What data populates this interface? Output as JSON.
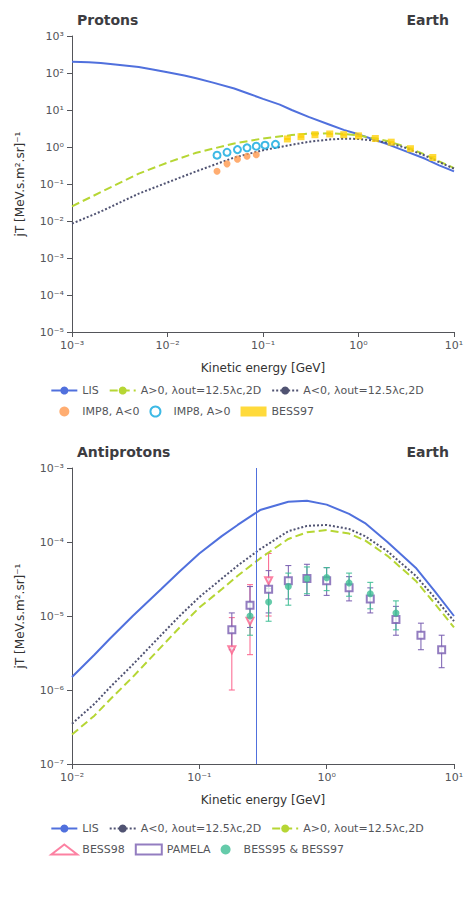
{
  "chart_data": [
    {
      "type": "line",
      "title": "Protons",
      "annotations": [
        "Earth"
      ],
      "xlabel": "Kinetic energy [GeV]",
      "ylabel": "jT [MeV.s.m².sr]⁻¹",
      "log": true,
      "grid": false,
      "legend": "bottom",
      "xlim": [
        0.001,
        10
      ],
      "ylim": [
        1e-05,
        1000
      ],
      "xticks": [
        {
          "value": 0.001,
          "label": "10⁻³"
        },
        {
          "value": 0.01,
          "label": "10⁻²"
        },
        {
          "value": 0.1,
          "label": "10⁻¹"
        },
        {
          "value": 1,
          "label": "10⁰"
        },
        {
          "value": 10,
          "label": "10¹"
        }
      ],
      "yticks": [
        {
          "value": 1e-05,
          "label": "10⁻⁵"
        },
        {
          "value": 0.0001,
          "label": "10⁻⁴"
        },
        {
          "value": 0.001,
          "label": "10⁻³"
        },
        {
          "value": 0.01,
          "label": "10⁻²"
        },
        {
          "value": 0.1,
          "label": "10⁻¹"
        },
        {
          "value": 1,
          "label": "10⁰"
        },
        {
          "value": 10,
          "label": "10¹"
        },
        {
          "value": 100,
          "label": "10²"
        },
        {
          "value": 1000,
          "label": "10³"
        }
      ],
      "series": [
        {
          "name": "LIS",
          "type": "line",
          "line_style": "solid",
          "x": [
            0.001,
            0.0015,
            0.002,
            0.003,
            0.005,
            0.007,
            0.01,
            0.015,
            0.02,
            0.03,
            0.05,
            0.07,
            0.1,
            0.15,
            0.2,
            0.3,
            0.5,
            0.7,
            1.0,
            1.5,
            2.0,
            3.0,
            5.0,
            7.0,
            10.0
          ],
          "values": [
            200,
            195,
            185,
            168,
            145,
            125,
            105,
            86,
            72,
            55,
            38,
            28,
            20,
            14,
            10,
            6.5,
            4.0,
            2.9,
            2.2,
            1.55,
            1.2,
            0.8,
            0.48,
            0.32,
            0.22
          ]
        },
        {
          "name": "A>0, λout=12.5λc,2D",
          "type": "line",
          "line_style": "dashed",
          "x": [
            0.001,
            0.002,
            0.005,
            0.01,
            0.02,
            0.05,
            0.1,
            0.2,
            0.3,
            0.5,
            0.7,
            1.0,
            1.5,
            2.0,
            3.0,
            5.0,
            7.0,
            10.0
          ],
          "values": [
            0.025,
            0.06,
            0.19,
            0.38,
            0.7,
            1.25,
            1.7,
            2.1,
            2.3,
            2.35,
            2.25,
            2.05,
            1.7,
            1.45,
            1.05,
            0.62,
            0.41,
            0.27
          ]
        },
        {
          "name": "A<0, λout=12.5λc,2D",
          "type": "line",
          "line_style": "dotted",
          "x": [
            0.001,
            0.002,
            0.005,
            0.01,
            0.02,
            0.05,
            0.1,
            0.2,
            0.3,
            0.5,
            0.7,
            1.0,
            1.5,
            2.0,
            3.0,
            5.0,
            7.0,
            10.0
          ],
          "values": [
            0.0085,
            0.018,
            0.055,
            0.11,
            0.22,
            0.52,
            0.82,
            1.15,
            1.38,
            1.6,
            1.68,
            1.65,
            1.48,
            1.3,
            0.98,
            0.58,
            0.39,
            0.26
          ]
        },
        {
          "name": "IMP8, A<0",
          "type": "scatter",
          "marker": "circle",
          "x": [
            0.033,
            0.042,
            0.054,
            0.068,
            0.085
          ],
          "values": [
            0.22,
            0.35,
            0.47,
            0.56,
            0.62
          ]
        },
        {
          "name": "IMP8, A>0",
          "type": "scatter",
          "marker": "circle-open",
          "x": [
            0.033,
            0.042,
            0.054,
            0.068,
            0.085,
            0.105,
            0.135
          ],
          "values": [
            0.6,
            0.72,
            0.85,
            0.95,
            1.05,
            1.12,
            1.18
          ]
        },
        {
          "name": "BESS97",
          "type": "scatter",
          "marker": "square",
          "x": [
            0.18,
            0.25,
            0.35,
            0.5,
            0.7,
            1.0,
            1.5,
            2.2,
            3.5,
            6.0
          ],
          "values": [
            1.65,
            1.9,
            2.15,
            2.25,
            2.15,
            2.0,
            1.7,
            1.35,
            0.9,
            0.52
          ],
          "yerr": [
            0.05,
            0.06,
            0.06,
            0.06,
            0.06,
            0.06,
            0.05,
            0.04,
            0.03,
            0.025
          ]
        }
      ]
    },
    {
      "type": "line",
      "title": "Antiprotons",
      "annotations": [
        "Earth"
      ],
      "xlabel": "Kinetic energy [GeV]",
      "ylabel": "jT [MeV.s.m².sr]⁻¹",
      "log": true,
      "grid": false,
      "legend": "bottom",
      "xlim": [
        0.01,
        10
      ],
      "ylim": [
        1e-07,
        0.001
      ],
      "xticks": [
        {
          "value": 0.01,
          "label": "10⁻²"
        },
        {
          "value": 0.1,
          "label": "10⁻¹"
        },
        {
          "value": 1,
          "label": "10⁰"
        },
        {
          "value": 10,
          "label": "10¹"
        }
      ],
      "yticks": [
        {
          "value": 1e-07,
          "label": "10⁻⁷"
        },
        {
          "value": 1e-06,
          "label": "10⁻⁶"
        },
        {
          "value": 1e-05,
          "label": "10⁻⁵"
        },
        {
          "value": 0.0001,
          "label": "10⁻⁴"
        },
        {
          "value": 0.001,
          "label": "10⁻³"
        }
      ],
      "vlines": [
        0.28
      ],
      "series": [
        {
          "name": "LIS",
          "type": "line",
          "line_style": "solid",
          "x": [
            0.01,
            0.015,
            0.02,
            0.03,
            0.05,
            0.07,
            0.1,
            0.15,
            0.2,
            0.3,
            0.5,
            0.7,
            1.0,
            1.5,
            2.0,
            3.0,
            5.0,
            7.0,
            10.0
          ],
          "values": [
            1.5e-06,
            3e-06,
            5e-06,
            1e-05,
            2.3e-05,
            4e-05,
            7e-05,
            0.00012,
            0.00017,
            0.00027,
            0.00035,
            0.00036,
            0.00032,
            0.00024,
            0.00018,
            0.0001,
            4.5e-05,
            2.2e-05,
            1e-05
          ]
        },
        {
          "name": "A<0, λout=12.5λc,2D",
          "type": "line",
          "line_style": "dotted",
          "x": [
            0.01,
            0.015,
            0.02,
            0.03,
            0.05,
            0.07,
            0.1,
            0.15,
            0.2,
            0.3,
            0.5,
            0.7,
            1.0,
            1.5,
            2.0,
            3.0,
            5.0,
            7.0,
            10.0
          ],
          "values": [
            3.5e-07,
            6.5e-07,
            1.1e-06,
            2.2e-06,
            5.5e-06,
            1e-05,
            1.8e-05,
            3.2e-05,
            4.8e-05,
            8e-05,
            0.00014,
            0.000165,
            0.00017,
            0.00015,
            0.00012,
            7.5e-05,
            3.5e-05,
            1.8e-05,
            8.5e-06
          ]
        },
        {
          "name": "A>0, λout=12.5λc,2D",
          "type": "line",
          "line_style": "dashed",
          "x": [
            0.01,
            0.015,
            0.02,
            0.03,
            0.05,
            0.07,
            0.1,
            0.15,
            0.2,
            0.3,
            0.5,
            0.7,
            1.0,
            1.5,
            2.0,
            3.0,
            5.0,
            7.0,
            10.0
          ],
          "values": [
            2.5e-07,
            4.5e-07,
            7.5e-07,
            1.5e-06,
            3.8e-06,
            7e-06,
            1.3e-05,
            2.3e-05,
            3.5e-05,
            6e-05,
            0.00011,
            0.000135,
            0.000145,
            0.00013,
            0.000105,
            6.5e-05,
            3e-05,
            1.5e-05,
            7e-06
          ]
        },
        {
          "name": "BESS98",
          "type": "scatter",
          "marker": "triangle-down-open",
          "x": [
            0.18,
            0.25,
            0.35
          ],
          "values": [
            3.5e-06,
            8.5e-06,
            3e-05
          ],
          "yerr_low": [
            2.5e-06,
            5.5e-06,
            2e-05
          ],
          "yerr_high": [
            6e-06,
            1.8e-05,
            4e-05
          ]
        },
        {
          "name": "PAMELA",
          "type": "scatter",
          "marker": "square-open",
          "x": [
            0.18,
            0.25,
            0.35,
            0.5,
            0.7,
            1.0,
            1.5,
            2.2,
            3.5,
            5.5,
            8.0
          ],
          "values": [
            6.5e-06,
            1.4e-05,
            2.3e-05,
            3e-05,
            3.2e-05,
            3e-05,
            2.4e-05,
            1.7e-05,
            9e-06,
            5.5e-06,
            3.5e-06
          ],
          "yerr_low": [
            3e-06,
            7e-06,
            1.2e-05,
            1.3e-05,
            1.3e-05,
            1.1e-05,
            8e-06,
            6e-06,
            3.5e-06,
            2e-06,
            1.5e-06
          ],
          "yerr_high": [
            4.5e-06,
            1.1e-05,
            1.8e-05,
            1.8e-05,
            1.8e-05,
            1.5e-05,
            1e-05,
            7e-06,
            4.5e-06,
            2.5e-06,
            2e-06
          ]
        },
        {
          "name": "BESS95 & BESS97",
          "type": "scatter",
          "marker": "circle",
          "x": [
            0.25,
            0.35,
            0.5,
            0.7,
            1.0,
            1.5,
            2.2,
            3.5
          ],
          "values": [
            1e-05,
            1.55e-05,
            2.5e-05,
            3.2e-05,
            3.3e-05,
            2.8e-05,
            2e-05,
            1.1e-05
          ],
          "yerr_low": [
            4.5e-06,
            7e-06,
            1.1e-05,
            1.2e-05,
            1.1e-05,
            9.5e-06,
            7.5e-06,
            4.5e-06
          ],
          "yerr_high": [
            5e-06,
            8e-06,
            1.3e-05,
            1.4e-05,
            1.2e-05,
            1e-05,
            8.5e-06,
            5e-06
          ]
        }
      ]
    }
  ]
}
